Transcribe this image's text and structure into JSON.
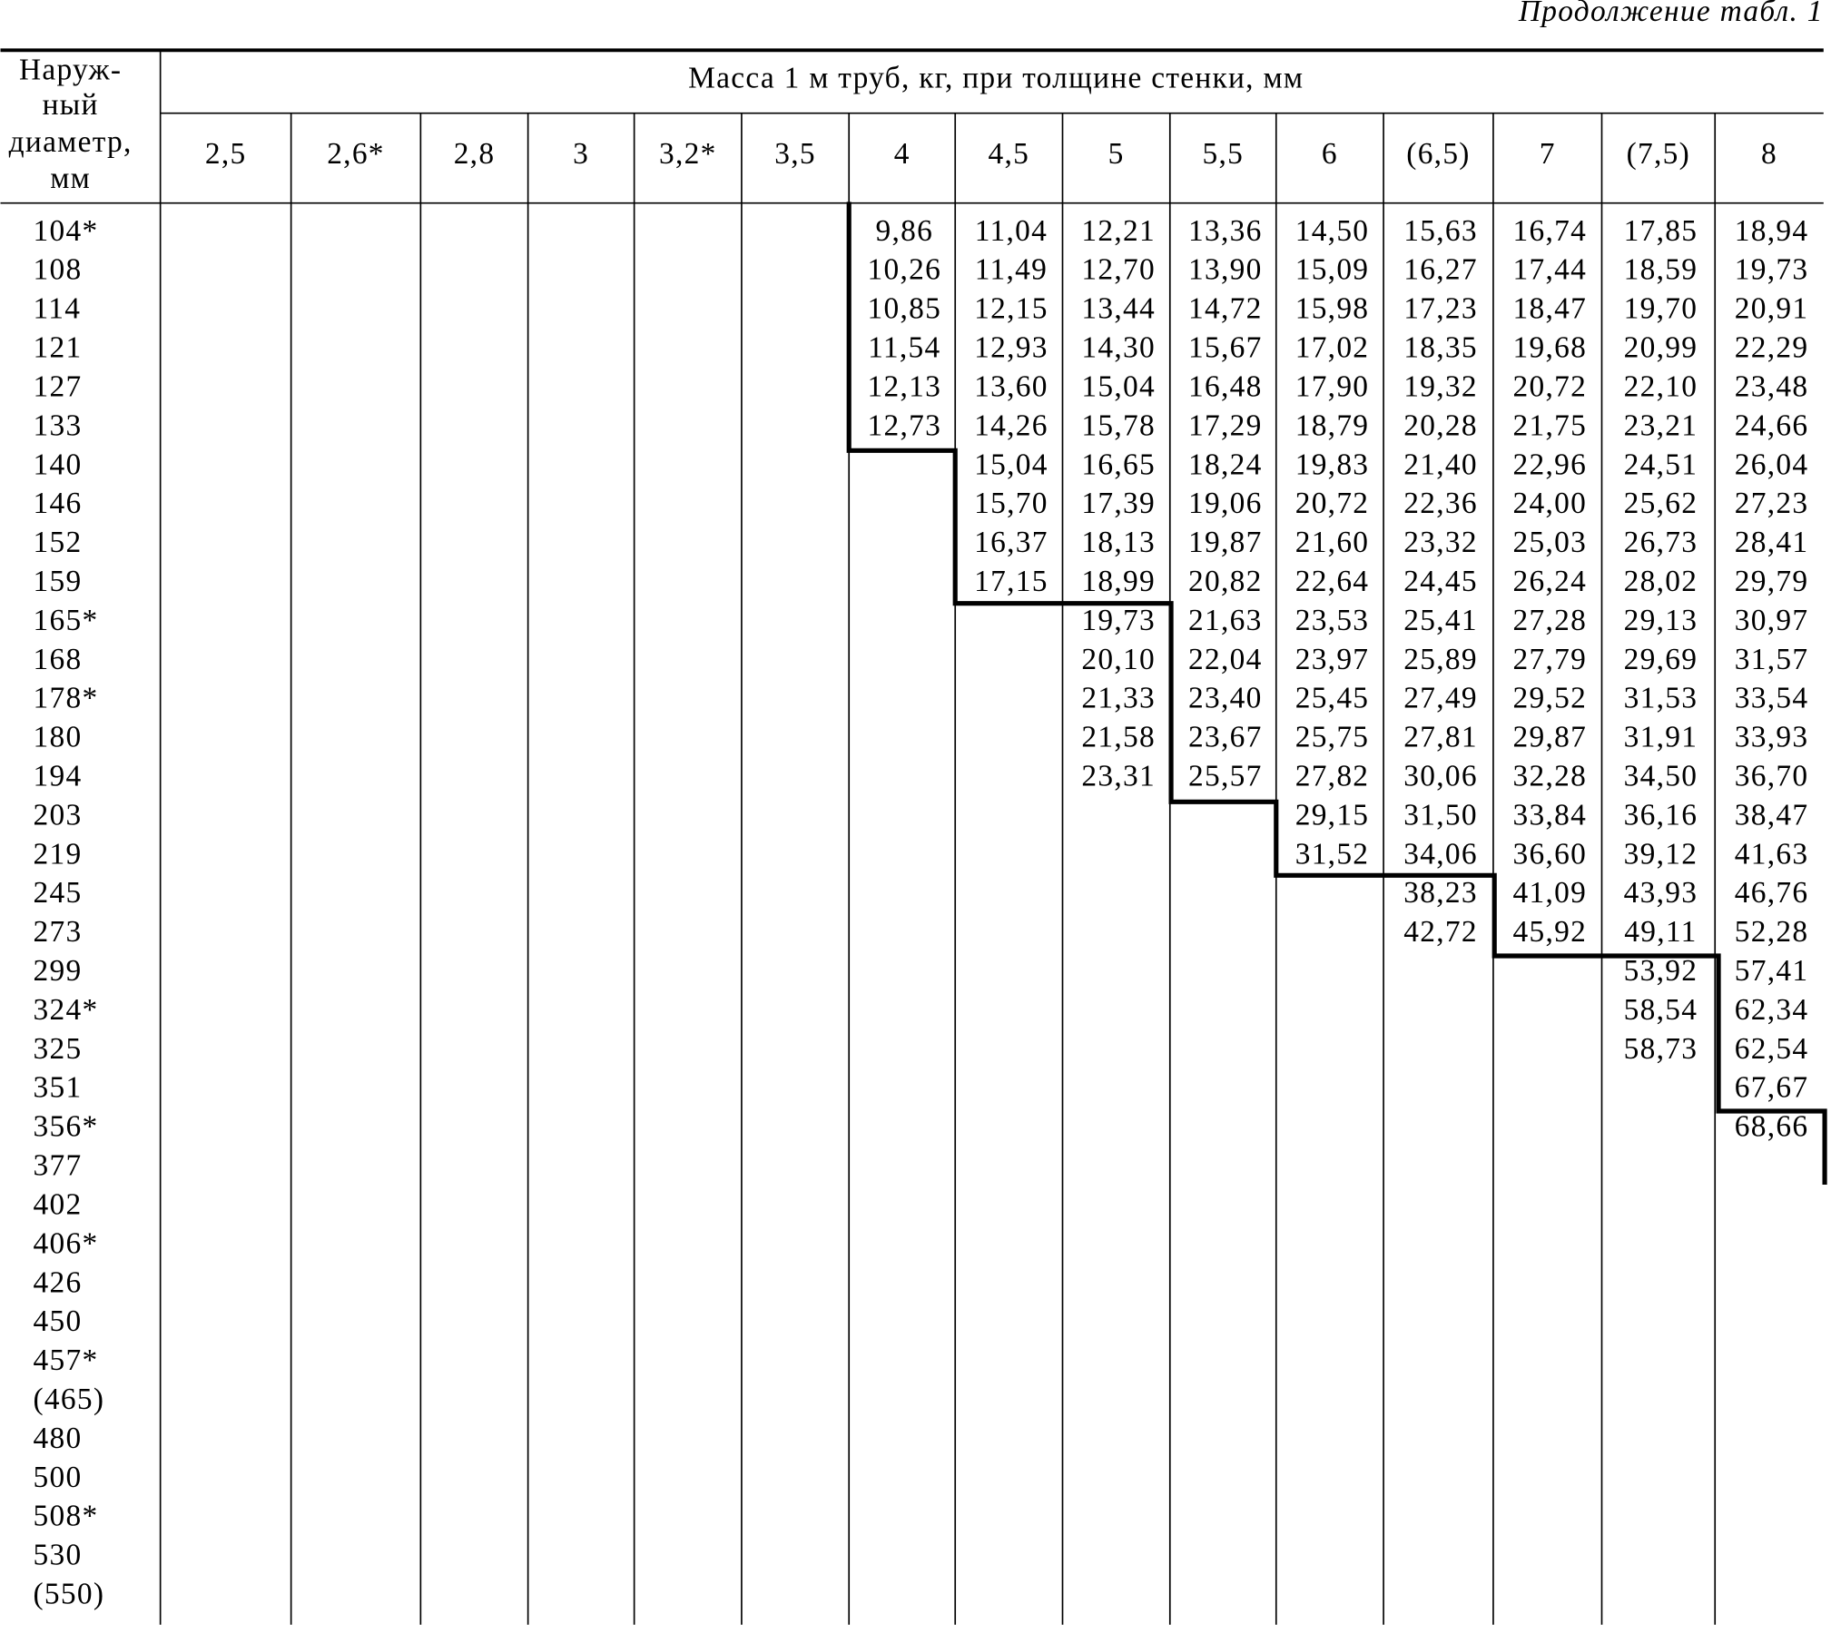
{
  "header": {
    "continuation": "Продолжение табл. 1"
  },
  "table": {
    "corner_header": [
      "Наруж-",
      "ный",
      "диаметр,",
      "мм"
    ],
    "group_header": "Масса 1 м труб, кг, при толщине стенки, мм",
    "columns": [
      "2,5",
      "2,6*",
      "2,8",
      "3",
      "3,2*",
      "3,5",
      "4",
      "4,5",
      "5",
      "5,5",
      "6",
      "(6,5)",
      "7",
      "(7,5)",
      "8"
    ],
    "rows": [
      {
        "diameter": "104*",
        "values": [
          null,
          null,
          null,
          null,
          null,
          null,
          "9,86",
          "11,04",
          "12,21",
          "13,36",
          "14,50",
          "15,63",
          "16,74",
          "17,85",
          "18,94"
        ]
      },
      {
        "diameter": "108",
        "values": [
          null,
          null,
          null,
          null,
          null,
          null,
          "10,26",
          "11,49",
          "12,70",
          "13,90",
          "15,09",
          "16,27",
          "17,44",
          "18,59",
          "19,73"
        ]
      },
      {
        "diameter": "114",
        "values": [
          null,
          null,
          null,
          null,
          null,
          null,
          "10,85",
          "12,15",
          "13,44",
          "14,72",
          "15,98",
          "17,23",
          "18,47",
          "19,70",
          "20,91"
        ]
      },
      {
        "diameter": "121",
        "values": [
          null,
          null,
          null,
          null,
          null,
          null,
          "11,54",
          "12,93",
          "14,30",
          "15,67",
          "17,02",
          "18,35",
          "19,68",
          "20,99",
          "22,29"
        ]
      },
      {
        "diameter": "127",
        "values": [
          null,
          null,
          null,
          null,
          null,
          null,
          "12,13",
          "13,60",
          "15,04",
          "16,48",
          "17,90",
          "19,32",
          "20,72",
          "22,10",
          "23,48"
        ]
      },
      {
        "diameter": "133",
        "values": [
          null,
          null,
          null,
          null,
          null,
          null,
          "12,73",
          "14,26",
          "15,78",
          "17,29",
          "18,79",
          "20,28",
          "21,75",
          "23,21",
          "24,66"
        ]
      },
      {
        "diameter": "140",
        "values": [
          null,
          null,
          null,
          null,
          null,
          null,
          null,
          "15,04",
          "16,65",
          "18,24",
          "19,83",
          "21,40",
          "22,96",
          "24,51",
          "26,04"
        ]
      },
      {
        "diameter": "146",
        "values": [
          null,
          null,
          null,
          null,
          null,
          null,
          null,
          "15,70",
          "17,39",
          "19,06",
          "20,72",
          "22,36",
          "24,00",
          "25,62",
          "27,23"
        ]
      },
      {
        "diameter": "152",
        "values": [
          null,
          null,
          null,
          null,
          null,
          null,
          null,
          "16,37",
          "18,13",
          "19,87",
          "21,60",
          "23,32",
          "25,03",
          "26,73",
          "28,41"
        ]
      },
      {
        "diameter": "159",
        "values": [
          null,
          null,
          null,
          null,
          null,
          null,
          null,
          "17,15",
          "18,99",
          "20,82",
          "22,64",
          "24,45",
          "26,24",
          "28,02",
          "29,79"
        ]
      },
      {
        "diameter": "165*",
        "values": [
          null,
          null,
          null,
          null,
          null,
          null,
          null,
          null,
          "19,73",
          "21,63",
          "23,53",
          "25,41",
          "27,28",
          "29,13",
          "30,97"
        ]
      },
      {
        "diameter": "168",
        "values": [
          null,
          null,
          null,
          null,
          null,
          null,
          null,
          null,
          "20,10",
          "22,04",
          "23,97",
          "25,89",
          "27,79",
          "29,69",
          "31,57"
        ]
      },
      {
        "diameter": "178*",
        "values": [
          null,
          null,
          null,
          null,
          null,
          null,
          null,
          null,
          "21,33",
          "23,40",
          "25,45",
          "27,49",
          "29,52",
          "31,53",
          "33,54"
        ]
      },
      {
        "diameter": "180",
        "values": [
          null,
          null,
          null,
          null,
          null,
          null,
          null,
          null,
          "21,58",
          "23,67",
          "25,75",
          "27,81",
          "29,87",
          "31,91",
          "33,93"
        ]
      },
      {
        "diameter": "194",
        "values": [
          null,
          null,
          null,
          null,
          null,
          null,
          null,
          null,
          "23,31",
          "25,57",
          "27,82",
          "30,06",
          "32,28",
          "34,50",
          "36,70"
        ]
      },
      {
        "diameter": "203",
        "values": [
          null,
          null,
          null,
          null,
          null,
          null,
          null,
          null,
          null,
          null,
          "29,15",
          "31,50",
          "33,84",
          "36,16",
          "38,47"
        ]
      },
      {
        "diameter": "219",
        "values": [
          null,
          null,
          null,
          null,
          null,
          null,
          null,
          null,
          null,
          null,
          "31,52",
          "34,06",
          "36,60",
          "39,12",
          "41,63"
        ]
      },
      {
        "diameter": "245",
        "values": [
          null,
          null,
          null,
          null,
          null,
          null,
          null,
          null,
          null,
          null,
          null,
          "38,23",
          "41,09",
          "43,93",
          "46,76"
        ]
      },
      {
        "diameter": "273",
        "values": [
          null,
          null,
          null,
          null,
          null,
          null,
          null,
          null,
          null,
          null,
          null,
          "42,72",
          "45,92",
          "49,11",
          "52,28"
        ]
      },
      {
        "diameter": "299",
        "values": [
          null,
          null,
          null,
          null,
          null,
          null,
          null,
          null,
          null,
          null,
          null,
          null,
          null,
          "53,92",
          "57,41"
        ]
      },
      {
        "diameter": "324*",
        "values": [
          null,
          null,
          null,
          null,
          null,
          null,
          null,
          null,
          null,
          null,
          null,
          null,
          null,
          "58,54",
          "62,34"
        ]
      },
      {
        "diameter": "325",
        "values": [
          null,
          null,
          null,
          null,
          null,
          null,
          null,
          null,
          null,
          null,
          null,
          null,
          null,
          "58,73",
          "62,54"
        ]
      },
      {
        "diameter": "351",
        "values": [
          null,
          null,
          null,
          null,
          null,
          null,
          null,
          null,
          null,
          null,
          null,
          null,
          null,
          null,
          "67,67"
        ]
      },
      {
        "diameter": "356*",
        "values": [
          null,
          null,
          null,
          null,
          null,
          null,
          null,
          null,
          null,
          null,
          null,
          null,
          null,
          null,
          "68,66"
        ]
      },
      {
        "diameter": "377",
        "values": [
          null,
          null,
          null,
          null,
          null,
          null,
          null,
          null,
          null,
          null,
          null,
          null,
          null,
          null,
          null
        ]
      },
      {
        "diameter": "402",
        "values": [
          null,
          null,
          null,
          null,
          null,
          null,
          null,
          null,
          null,
          null,
          null,
          null,
          null,
          null,
          null
        ]
      },
      {
        "diameter": "406*",
        "values": [
          null,
          null,
          null,
          null,
          null,
          null,
          null,
          null,
          null,
          null,
          null,
          null,
          null,
          null,
          null
        ]
      },
      {
        "diameter": "426",
        "values": [
          null,
          null,
          null,
          null,
          null,
          null,
          null,
          null,
          null,
          null,
          null,
          null,
          null,
          null,
          null
        ]
      },
      {
        "diameter": "450",
        "values": [
          null,
          null,
          null,
          null,
          null,
          null,
          null,
          null,
          null,
          null,
          null,
          null,
          null,
          null,
          null
        ]
      },
      {
        "diameter": "457*",
        "values": [
          null,
          null,
          null,
          null,
          null,
          null,
          null,
          null,
          null,
          null,
          null,
          null,
          null,
          null,
          null
        ]
      },
      {
        "diameter": "(465)",
        "values": [
          null,
          null,
          null,
          null,
          null,
          null,
          null,
          null,
          null,
          null,
          null,
          null,
          null,
          null,
          null
        ]
      },
      {
        "diameter": "480",
        "values": [
          null,
          null,
          null,
          null,
          null,
          null,
          null,
          null,
          null,
          null,
          null,
          null,
          null,
          null,
          null
        ]
      },
      {
        "diameter": "500",
        "values": [
          null,
          null,
          null,
          null,
          null,
          null,
          null,
          null,
          null,
          null,
          null,
          null,
          null,
          null,
          null
        ]
      },
      {
        "diameter": "508*",
        "values": [
          null,
          null,
          null,
          null,
          null,
          null,
          null,
          null,
          null,
          null,
          null,
          null,
          null,
          null,
          null
        ]
      },
      {
        "diameter": "530",
        "values": [
          null,
          null,
          null,
          null,
          null,
          null,
          null,
          null,
          null,
          null,
          null,
          null,
          null,
          null,
          null
        ]
      },
      {
        "diameter": "(550)",
        "values": [
          null,
          null,
          null,
          null,
          null,
          null,
          null,
          null,
          null,
          null,
          null,
          null,
          null,
          null,
          null
        ]
      }
    ]
  }
}
